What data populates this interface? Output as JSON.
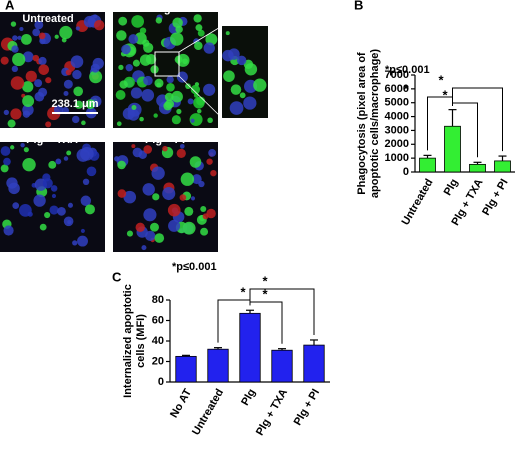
{
  "figure": {
    "panel_labels": [
      "A",
      "B",
      "C"
    ],
    "image_labels": [
      "Untreated",
      "Plg",
      "Plg + TXA",
      "Plg + PI"
    ],
    "scale_bar": "238.1 μm"
  },
  "chart_data": [
    {
      "type": "bar",
      "ylabel": [
        "Phagocytosis (pixel area of",
        "apoptotic cells/macrophage)"
      ],
      "annotation": "*p≤0.001",
      "categories": [
        "Untreated",
        "Plg",
        "Plg + TXA",
        "Plg + PI"
      ],
      "values": [
        1000,
        3300,
        550,
        800
      ],
      "errors": [
        200,
        1200,
        150,
        350
      ],
      "color": "#33ee33",
      "ylim": [
        0,
        7000
      ],
      "yticks": [
        0,
        1000,
        2000,
        3000,
        4000,
        5000,
        6000,
        7000
      ],
      "significance": [
        "*",
        "*",
        "*"
      ]
    },
    {
      "type": "bar",
      "ylabel": [
        "Internalized apoptotic",
        "cells (MFI)"
      ],
      "annotation": "*p≤0.001",
      "categories": [
        "No AT",
        "Untreated",
        "Plg",
        "Plg + TXA",
        "Plg + PI"
      ],
      "values": [
        25,
        32,
        67,
        31,
        36
      ],
      "errors": [
        1,
        1.5,
        3,
        1.5,
        5
      ],
      "color": "#2222ee",
      "ylim": [
        0,
        80
      ],
      "yticks": [
        0,
        20,
        40,
        60,
        80
      ],
      "significance": [
        "*",
        "*",
        "*"
      ]
    }
  ]
}
